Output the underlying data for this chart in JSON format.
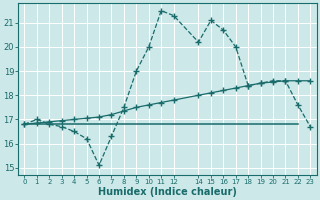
{
  "xlabel": "Humidex (Indice chaleur)",
  "bg_color": "#cce8e8",
  "line_color": "#1a6b6b",
  "grid_color": "#b0d8d8",
  "xlim": [
    -0.5,
    23.5
  ],
  "ylim": [
    14.7,
    21.8
  ],
  "yticks": [
    15,
    16,
    17,
    18,
    19,
    20,
    21
  ],
  "xticks": [
    0,
    1,
    2,
    3,
    4,
    5,
    6,
    7,
    8,
    9,
    10,
    11,
    12,
    14,
    15,
    16,
    17,
    18,
    19,
    20,
    21,
    22,
    23
  ],
  "xtick_labels": [
    "0",
    "1",
    "2",
    "3",
    "4",
    "5",
    "6",
    "7",
    "8",
    "9",
    "10",
    "11",
    "12",
    "14",
    "15",
    "16",
    "17",
    "18",
    "19",
    "20",
    "21",
    "22",
    "23"
  ],
  "line1_x": [
    0,
    1,
    2,
    3,
    4,
    5,
    6,
    7,
    8,
    9,
    10,
    11,
    12,
    14,
    15,
    16,
    17,
    18,
    19,
    20,
    21,
    22,
    23
  ],
  "line1_y": [
    16.8,
    17.0,
    16.8,
    16.7,
    16.5,
    16.2,
    15.1,
    16.3,
    17.5,
    19.0,
    20.0,
    21.5,
    21.3,
    20.2,
    21.1,
    20.7,
    20.0,
    18.4,
    18.5,
    18.6,
    18.6,
    17.6,
    16.7
  ],
  "line2_x": [
    0,
    22
  ],
  "line2_y": [
    16.8,
    16.8
  ],
  "line3_x": [
    0,
    1,
    2,
    3,
    4,
    5,
    6,
    7,
    8,
    9,
    10,
    11,
    12,
    14,
    15,
    16,
    17,
    18,
    19,
    20,
    21,
    22,
    23
  ],
  "line3_y": [
    16.8,
    16.85,
    16.9,
    16.95,
    17.0,
    17.05,
    17.1,
    17.2,
    17.35,
    17.5,
    17.6,
    17.7,
    17.8,
    18.0,
    18.1,
    18.2,
    18.3,
    18.4,
    18.5,
    18.55,
    18.6,
    18.6,
    18.6
  ]
}
